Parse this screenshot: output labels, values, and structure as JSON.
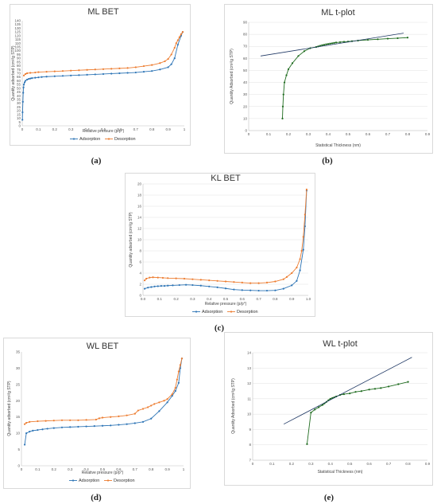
{
  "figure": {
    "sublabels": {
      "a": "(a)",
      "b": "(b)",
      "c": "(c)",
      "d": "(d)",
      "e": "(e)"
    }
  },
  "colors": {
    "adsorption": "#2e75b6",
    "desorption": "#ed7d31",
    "tplot_points": "#1e6b1e",
    "tplot_fit": "#1f3864",
    "grid": "#e0e0e0"
  },
  "chart_data": [
    {
      "id": "a",
      "type": "line",
      "title": "ML BET",
      "xlabel": "Relative pressure (p/p°)",
      "ylabel": "Quantity adsorbed (cm³/g STP)",
      "xlim": [
        0,
        1
      ],
      "ylim": [
        0,
        140
      ],
      "xticks": [
        0,
        0.1,
        0.2,
        0.3,
        0.4,
        0.5,
        0.6,
        0.7,
        0.8,
        0.9,
        1
      ],
      "xtick_labels": [
        "0",
        "0.1",
        "0.2",
        "0.3",
        "0.4",
        "0.5",
        "0.6",
        "0.7",
        "0.8",
        "0.9",
        "1"
      ],
      "yticks": [
        0,
        5,
        10,
        15,
        20,
        25,
        30,
        35,
        40,
        45,
        50,
        55,
        60,
        65,
        70,
        75,
        80,
        85,
        90,
        95,
        100,
        105,
        110,
        115,
        120,
        125,
        130,
        135,
        140
      ],
      "ytick_labels": [
        "0",
        "5",
        "10",
        "15",
        "20",
        "25",
        "30",
        "35",
        "40",
        "45",
        "50",
        "55",
        "60",
        "65",
        "70",
        "75",
        "80",
        "85",
        "90",
        "95",
        "100",
        "105",
        "110",
        "115",
        "120",
        "125",
        "130",
        "135",
        "140"
      ],
      "legend_position": "bottom",
      "series": [
        {
          "name": "Adsorption",
          "color": "#2e75b6",
          "x": [
            0.001,
            0.002,
            0.004,
            0.006,
            0.008,
            0.01,
            0.015,
            0.02,
            0.03,
            0.04,
            0.05,
            0.06,
            0.08,
            0.1,
            0.12,
            0.15,
            0.2,
            0.25,
            0.3,
            0.35,
            0.4,
            0.45,
            0.5,
            0.55,
            0.6,
            0.65,
            0.7,
            0.75,
            0.8,
            0.85,
            0.9,
            0.92,
            0.94,
            0.96,
            0.98,
            0.99
          ],
          "y": [
            8,
            18,
            32,
            44,
            51,
            55,
            58,
            60,
            61.5,
            62.5,
            63,
            63.5,
            64,
            64.5,
            65,
            65.5,
            66,
            66.5,
            67,
            67.5,
            68,
            68.5,
            69,
            69.5,
            70,
            70.5,
            71,
            72,
            73,
            75,
            78,
            82,
            90,
            108,
            120,
            125
          ]
        },
        {
          "name": "Desorption",
          "color": "#ed7d31",
          "x": [
            0.99,
            0.98,
            0.97,
            0.96,
            0.95,
            0.94,
            0.92,
            0.9,
            0.88,
            0.85,
            0.8,
            0.75,
            0.7,
            0.65,
            0.6,
            0.55,
            0.5,
            0.45,
            0.4,
            0.35,
            0.3,
            0.25,
            0.2,
            0.15,
            0.1,
            0.08,
            0.05,
            0.03,
            0.02,
            0.01
          ],
          "y": [
            125,
            122,
            118,
            114,
            110,
            104,
            95,
            89,
            86,
            83.5,
            81,
            79.5,
            78,
            77,
            76.5,
            76,
            75.5,
            75,
            74.5,
            74,
            73.5,
            73,
            72.5,
            72,
            71.5,
            71,
            70.5,
            70,
            69,
            67
          ]
        }
      ]
    },
    {
      "id": "b",
      "type": "line",
      "title": "ML t-plot",
      "xlabel": "Statistical Thickness (nm)",
      "ylabel": "Quantity Adsorbed (cm³/g STP)",
      "xlim": [
        0,
        0.9
      ],
      "ylim": [
        0,
        90
      ],
      "xticks": [
        0,
        0.1,
        0.2,
        0.3,
        0.4,
        0.5,
        0.6,
        0.7,
        0.8,
        0.9
      ],
      "xtick_labels": [
        "0",
        "0.1",
        "0.2",
        "0.3",
        "0.4",
        "0.5",
        "0.6",
        "0.7",
        "0.8",
        "0.9"
      ],
      "yticks": [
        0,
        10,
        20,
        30,
        40,
        50,
        60,
        70,
        80,
        90
      ],
      "ytick_labels": [
        "0",
        "10",
        "20",
        "30",
        "40",
        "50",
        "60",
        "70",
        "80",
        "90"
      ],
      "series": [
        {
          "name": "",
          "color": "#1e6b1e",
          "x": [
            0.17,
            0.172,
            0.175,
            0.18,
            0.19,
            0.2,
            0.22,
            0.25,
            0.28,
            0.31,
            0.34,
            0.35,
            0.36,
            0.37,
            0.38,
            0.39,
            0.4,
            0.41,
            0.42,
            0.43,
            0.44,
            0.46,
            0.48,
            0.5,
            0.52,
            0.55,
            0.6,
            0.65,
            0.7,
            0.75,
            0.8
          ],
          "y": [
            10,
            20,
            30,
            40,
            46,
            51,
            56,
            62,
            66,
            68.5,
            69.5,
            70,
            70.5,
            71,
            71.3,
            71.7,
            72,
            72.3,
            72.6,
            72.9,
            73.2,
            73.5,
            73.8,
            74,
            74.3,
            74.8,
            75.4,
            75.9,
            76.4,
            76.8,
            77.3
          ]
        },
        {
          "name": "",
          "color": "#1f3864",
          "markers": false,
          "x": [
            0.06,
            0.78
          ],
          "y": [
            62,
            81
          ]
        }
      ]
    },
    {
      "id": "c",
      "type": "line",
      "title": "KL BET",
      "xlabel": "Relative pressure (p/p°)",
      "ylabel": "Quantity adsorbed (cm³/g STP)",
      "xlim": [
        0,
        1
      ],
      "ylim": [
        0,
        20
      ],
      "xticks": [
        0,
        0.1,
        0.2,
        0.3,
        0.4,
        0.5,
        0.6,
        0.7,
        0.8,
        0.9,
        1
      ],
      "xtick_labels": [
        "0.0",
        "0.1",
        "0.2",
        "0.3",
        "0.4",
        "0.5",
        "0.6",
        "0.7",
        "0.8",
        "0.9",
        "1.0"
      ],
      "yticks": [
        0,
        2,
        4,
        6,
        8,
        10,
        12,
        14,
        16,
        18,
        20
      ],
      "ytick_labels": [
        "0",
        "2",
        "4",
        "6",
        "8",
        "10",
        "12",
        "14",
        "16",
        "18",
        "20"
      ],
      "legend_position": "bottom",
      "series": [
        {
          "name": "Adsorption",
          "color": "#2e75b6",
          "x": [
            0.01,
            0.03,
            0.05,
            0.07,
            0.09,
            0.11,
            0.13,
            0.15,
            0.18,
            0.22,
            0.26,
            0.3,
            0.35,
            0.4,
            0.45,
            0.5,
            0.55,
            0.6,
            0.65,
            0.7,
            0.75,
            0.8,
            0.85,
            0.9,
            0.93,
            0.95,
            0.97,
            0.98,
            0.99
          ],
          "y": [
            1.2,
            1.4,
            1.5,
            1.6,
            1.65,
            1.7,
            1.7,
            1.75,
            1.8,
            1.85,
            1.9,
            1.85,
            1.75,
            1.6,
            1.45,
            1.25,
            1.05,
            0.95,
            0.9,
            0.85,
            0.85,
            0.9,
            1.2,
            1.8,
            2.6,
            4.5,
            8.2,
            12.4,
            18.8
          ]
        },
        {
          "name": "Desorption",
          "color": "#ed7d31",
          "x": [
            0.99,
            0.98,
            0.97,
            0.96,
            0.95,
            0.93,
            0.9,
            0.87,
            0.85,
            0.8,
            0.75,
            0.7,
            0.65,
            0.6,
            0.55,
            0.5,
            0.45,
            0.4,
            0.35,
            0.3,
            0.25,
            0.2,
            0.15,
            0.12,
            0.09,
            0.06,
            0.04,
            0.02,
            0.01
          ],
          "y": [
            19,
            14.5,
            10.5,
            8,
            6.5,
            5,
            4,
            3.3,
            2.9,
            2.5,
            2.3,
            2.2,
            2.2,
            2.3,
            2.4,
            2.5,
            2.6,
            2.7,
            2.8,
            2.9,
            3.0,
            3.05,
            3.1,
            3.15,
            3.2,
            3.25,
            3.2,
            3.0,
            2.7
          ]
        }
      ]
    },
    {
      "id": "d",
      "type": "line",
      "title": "WL BET",
      "xlabel": "Relative pressure (p/p°)",
      "ylabel": "Quantity adsorbed (cm³/g STP)",
      "xlim": [
        0,
        1
      ],
      "ylim": [
        0,
        35
      ],
      "xticks": [
        0,
        0.1,
        0.2,
        0.3,
        0.4,
        0.5,
        0.6,
        0.7,
        0.8,
        0.9,
        1
      ],
      "xtick_labels": [
        "0",
        "0.1",
        "0.2",
        "0.3",
        "0.4",
        "0.5",
        "0.6",
        "0.7",
        "0.8",
        "0.9",
        "1"
      ],
      "yticks": [
        0,
        5,
        10,
        15,
        20,
        25,
        30,
        35
      ],
      "ytick_labels": [
        "0",
        "5",
        "10",
        "15",
        "20",
        "25",
        "30",
        "35"
      ],
      "legend_position": "bottom",
      "series": [
        {
          "name": "Adsorption",
          "color": "#2e75b6",
          "x": [
            0.02,
            0.03,
            0.05,
            0.07,
            0.1,
            0.13,
            0.16,
            0.2,
            0.25,
            0.3,
            0.35,
            0.4,
            0.45,
            0.5,
            0.55,
            0.6,
            0.65,
            0.7,
            0.75,
            0.8,
            0.85,
            0.9,
            0.93,
            0.95,
            0.97,
            0.98,
            0.99
          ],
          "y": [
            6.5,
            10,
            10.5,
            10.8,
            11,
            11.2,
            11.4,
            11.6,
            11.8,
            11.9,
            12,
            12.1,
            12.2,
            12.3,
            12.4,
            12.6,
            12.8,
            13.1,
            13.5,
            14.5,
            16.8,
            19.5,
            21.5,
            23,
            25.5,
            30,
            33
          ]
        },
        {
          "name": "Desorption",
          "color": "#ed7d31",
          "x": [
            0.99,
            0.98,
            0.97,
            0.96,
            0.95,
            0.93,
            0.9,
            0.88,
            0.85,
            0.82,
            0.8,
            0.78,
            0.75,
            0.72,
            0.7,
            0.65,
            0.6,
            0.55,
            0.5,
            0.48,
            0.46,
            0.4,
            0.35,
            0.3,
            0.25,
            0.2,
            0.15,
            0.1,
            0.05,
            0.03,
            0.02
          ],
          "y": [
            33,
            31,
            29,
            26.5,
            24,
            22,
            20.5,
            20,
            19.5,
            19,
            18.5,
            18,
            17.5,
            17,
            16,
            15.5,
            15.2,
            15,
            14.8,
            14.6,
            14.2,
            14.1,
            14,
            14,
            14,
            13.9,
            13.8,
            13.7,
            13.5,
            13.2,
            12.8
          ]
        }
      ]
    },
    {
      "id": "e",
      "type": "line",
      "title": "WL t-plot",
      "xlabel": "Statistical Thickness (nm)",
      "ylabel": "Quantity Adsorbed (cm³/g STP)",
      "xlim": [
        0,
        0.9
      ],
      "ylim": [
        7,
        14
      ],
      "xticks": [
        0,
        0.1,
        0.2,
        0.3,
        0.4,
        0.5,
        0.6,
        0.7,
        0.8,
        0.9
      ],
      "xtick_labels": [
        "0",
        "0.1",
        "0.2",
        "0.3",
        "0.4",
        "0.5",
        "0.6",
        "0.7",
        "0.8",
        "0.9"
      ],
      "yticks": [
        7,
        8,
        9,
        10,
        11,
        12,
        13,
        14
      ],
      "ytick_labels": [
        "7",
        "8",
        "9",
        "10",
        "11",
        "12",
        "13",
        "14"
      ],
      "series": [
        {
          "name": "",
          "color": "#1e6b1e",
          "x": [
            0.28,
            0.3,
            0.32,
            0.34,
            0.36,
            0.37,
            0.38,
            0.39,
            0.4,
            0.41,
            0.42,
            0.43,
            0.45,
            0.47,
            0.5,
            0.53,
            0.56,
            0.6,
            0.63,
            0.66,
            0.7,
            0.75,
            0.8
          ],
          "y": [
            8.05,
            10.1,
            10.3,
            10.45,
            10.6,
            10.7,
            10.8,
            10.9,
            11.0,
            11.05,
            11.1,
            11.15,
            11.25,
            11.3,
            11.35,
            11.45,
            11.5,
            11.6,
            11.65,
            11.7,
            11.8,
            11.95,
            12.1
          ]
        },
        {
          "name": "",
          "color": "#1f3864",
          "markers": false,
          "x": [
            0.16,
            0.82
          ],
          "y": [
            9.35,
            13.7
          ]
        }
      ]
    }
  ]
}
